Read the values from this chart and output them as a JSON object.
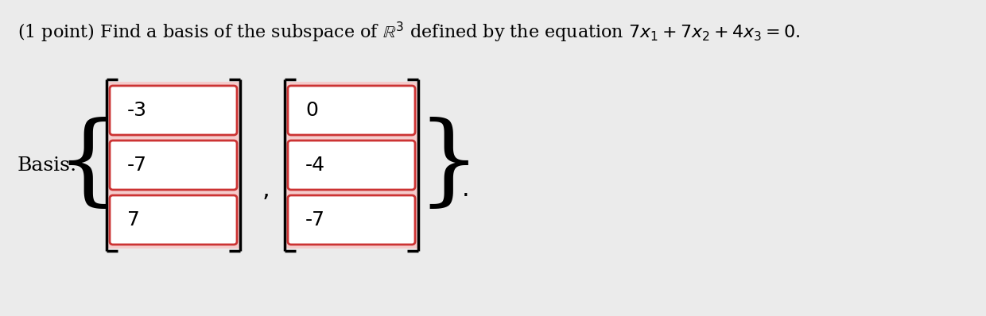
{
  "title_line1": "(1 point) Find a basis of the subspace of ",
  "title_R3": "R",
  "title_exp": "3",
  "title_line2": " defined by the equation ",
  "title_eq": "7x₁ + 7x₂ + 4x₃ = 0.",
  "basis_label": "Basis:",
  "vector1": [
    "-3",
    "-7",
    "7"
  ],
  "vector2": [
    "0",
    "-4",
    "-7"
  ],
  "bg_color": "#ebebeb",
  "box_fill": "#ffffff",
  "box_border": "#cc3333",
  "box_shadow": "#f5cccc",
  "text_color": "#000000",
  "title_fontsize": 16,
  "label_fontsize": 18,
  "entry_fontsize": 18,
  "bracket_fontsize": 90,
  "curly_fontsize": 90
}
